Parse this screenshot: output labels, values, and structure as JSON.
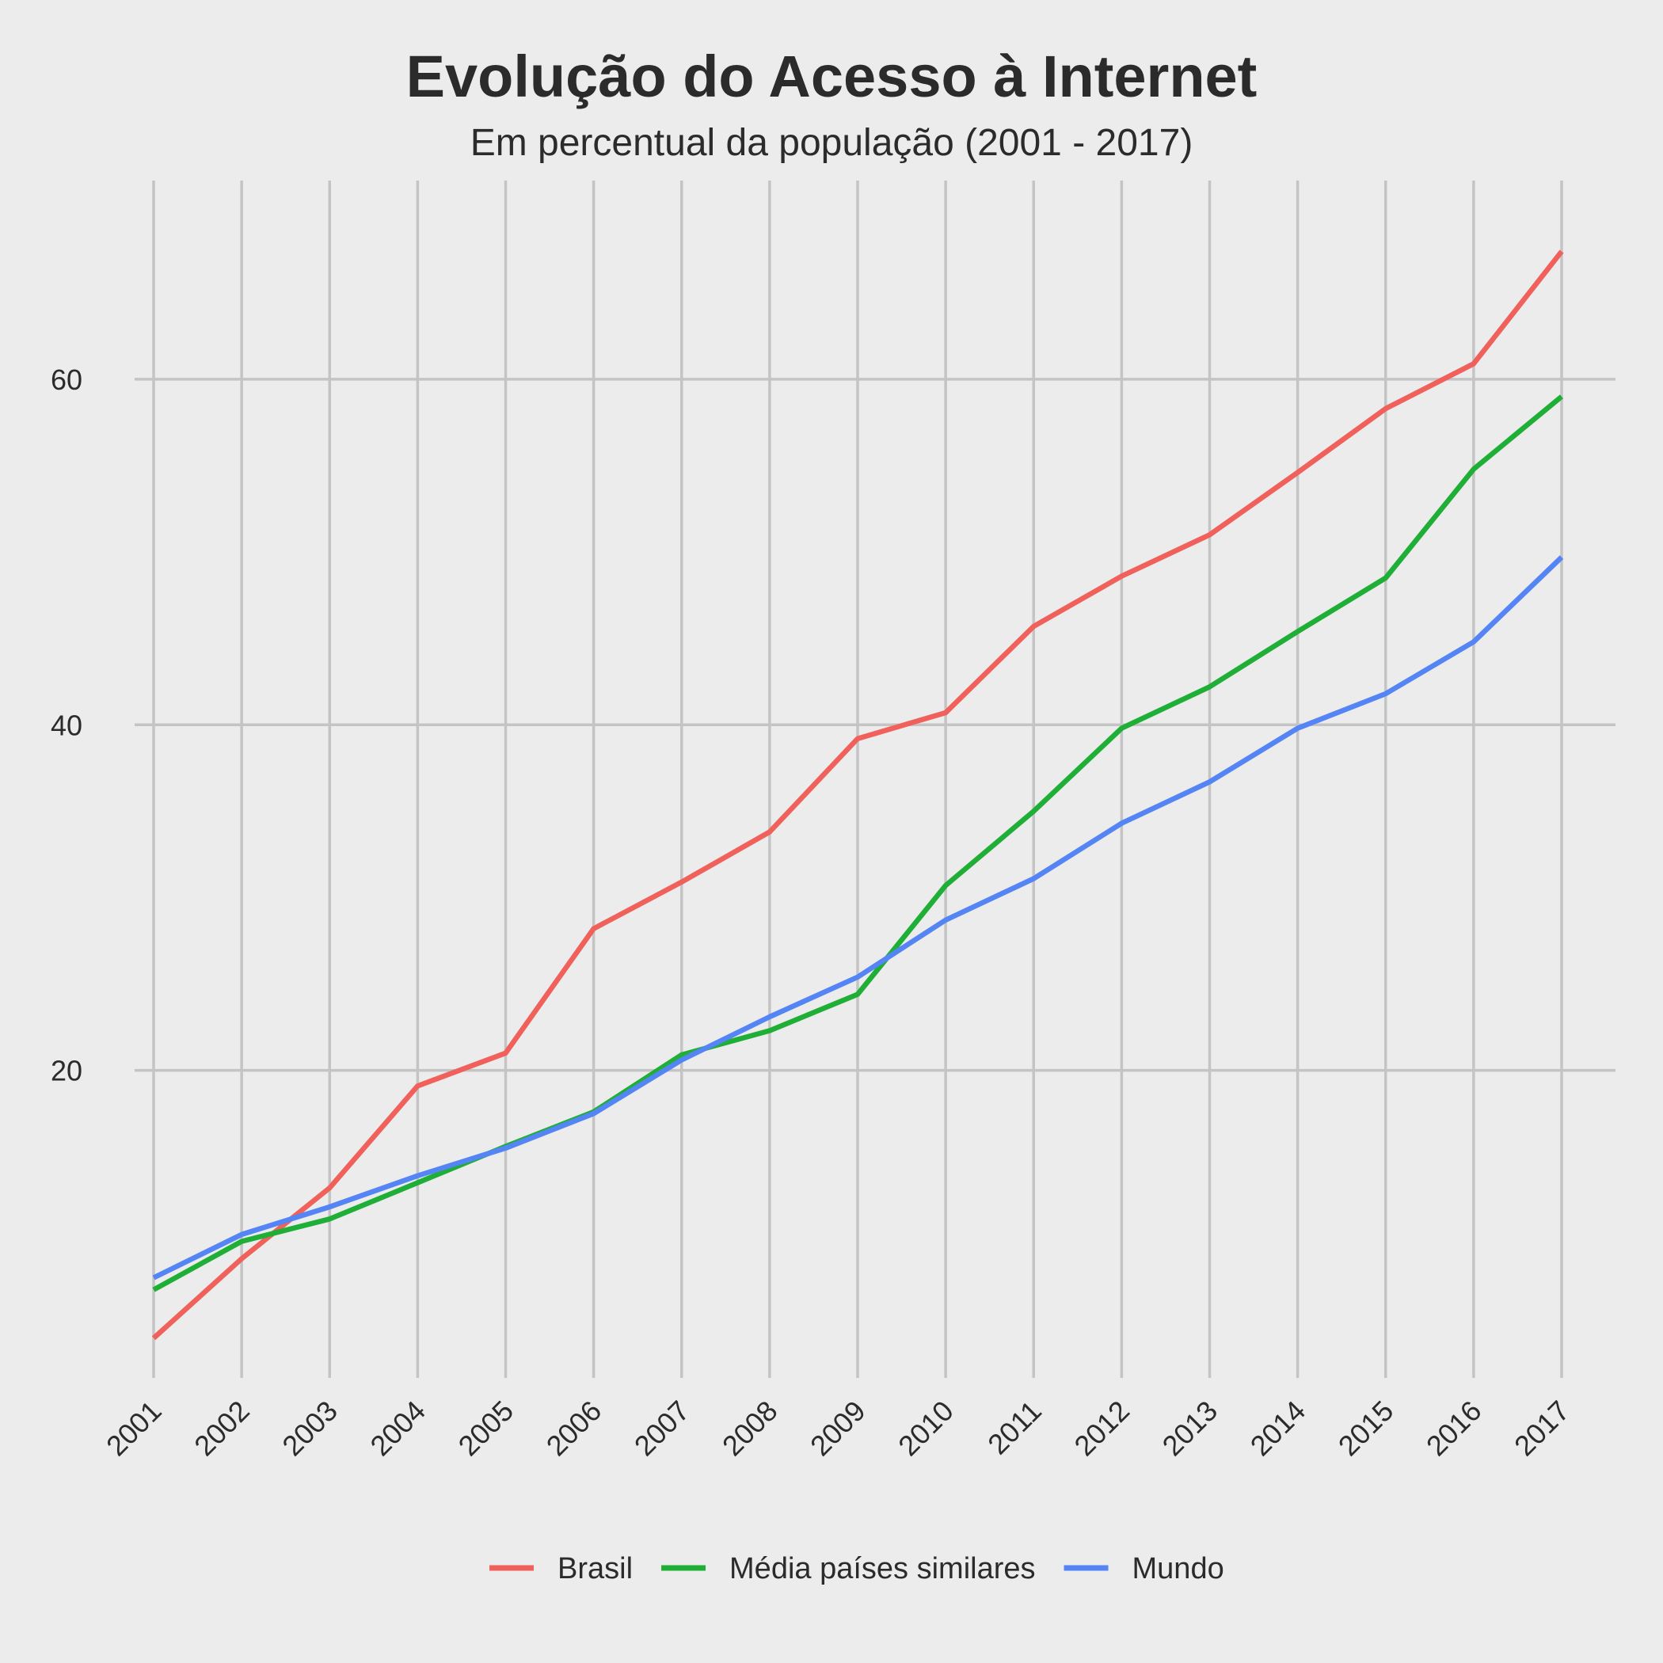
{
  "chart_data": {
    "type": "line",
    "title": "Evolução do Acesso à Internet",
    "subtitle": "Em percentual da população (2001 - 2017)",
    "xlabel": "",
    "ylabel": "",
    "x": [
      2001,
      2002,
      2003,
      2004,
      2005,
      2006,
      2007,
      2008,
      2009,
      2010,
      2011,
      2012,
      2013,
      2014,
      2015,
      2016,
      2017
    ],
    "x_tick_labels": [
      "2001",
      "2002",
      "2003",
      "2004",
      "2005",
      "2006",
      "2007",
      "2008",
      "2009",
      "2010",
      "2011",
      "2012",
      "2013",
      "2014",
      "2015",
      "2016",
      "2017"
    ],
    "y_ticks": [
      20,
      40,
      60
    ],
    "y_tick_labels": [
      "20",
      "40",
      "60"
    ],
    "ylim": [
      2.2,
      71.5
    ],
    "grid": true,
    "legend_position": "bottom",
    "series": [
      {
        "name": "Brasil",
        "color": "#f0615c",
        "values": [
          4.5,
          9.1,
          13.2,
          19.1,
          21.0,
          28.2,
          30.9,
          33.8,
          39.2,
          40.7,
          45.7,
          48.6,
          51.0,
          54.6,
          58.3,
          60.9,
          67.4
        ]
      },
      {
        "name": "Média países similares",
        "color": "#1fae36",
        "values": [
          7.3,
          10.1,
          11.4,
          13.5,
          15.6,
          17.6,
          20.9,
          22.3,
          24.4,
          30.7,
          35.0,
          39.8,
          42.2,
          45.4,
          48.5,
          54.8,
          59.0
        ]
      },
      {
        "name": "Mundo",
        "color": "#5585f5",
        "values": [
          8.0,
          10.5,
          12.1,
          13.9,
          15.5,
          17.5,
          20.6,
          23.1,
          25.4,
          28.7,
          31.1,
          34.3,
          36.7,
          39.8,
          41.8,
          44.8,
          49.7
        ]
      }
    ]
  }
}
